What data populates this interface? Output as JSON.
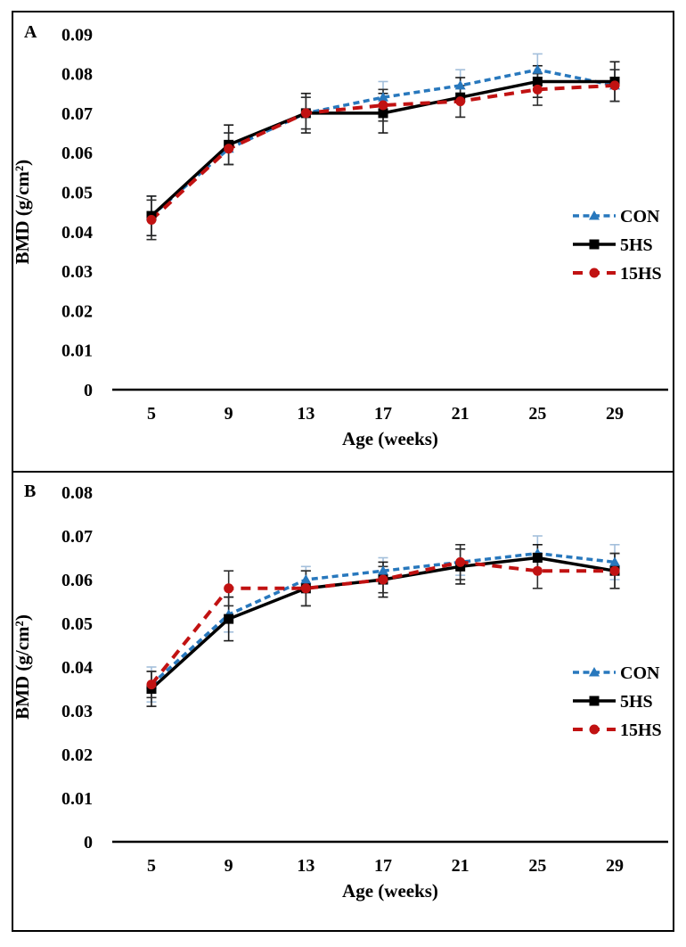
{
  "figure_title": "",
  "accent_colors": {
    "con_blue": "#2878bd",
    "hs5_black": "#000000",
    "hs15_red": "#c11212",
    "con_error": "#a3bfdb",
    "dark_error": "#1a1a1a"
  },
  "chart_data": [
    {
      "type": "line",
      "panel_label": "A",
      "xlabel": "Age (weeks)",
      "ylabel": "BMD (g/cm²)",
      "x": [
        5,
        9,
        13,
        17,
        21,
        25,
        29
      ],
      "ylim": [
        0,
        0.09
      ],
      "ytick_labels": [
        "0",
        "0.01",
        "0.02",
        "0.03",
        "0.04",
        "0.05",
        "0.06",
        "0.07",
        "0.08",
        "0.09"
      ],
      "grid": false,
      "legend_position": "right-middle",
      "error_bars": true,
      "series": [
        {
          "name": "CON",
          "color": "#2878bd",
          "line": "dashed-short",
          "marker": "triangle",
          "error_color": "#a3bfdb",
          "values": [
            0.044,
            0.061,
            0.07,
            0.074,
            0.077,
            0.081,
            0.077
          ],
          "errors": [
            0.005,
            0.004,
            0.004,
            0.004,
            0.004,
            0.004,
            0.004
          ]
        },
        {
          "name": "5HS",
          "color": "#000000",
          "line": "solid",
          "marker": "square",
          "error_color": "#1a1a1a",
          "values": [
            0.044,
            0.062,
            0.07,
            0.07,
            0.074,
            0.078,
            0.078
          ],
          "errors": [
            0.005,
            0.005,
            0.005,
            0.005,
            0.005,
            0.004,
            0.005
          ]
        },
        {
          "name": "15HS",
          "color": "#c11212",
          "line": "dashed-long",
          "marker": "circle",
          "error_color": "#2e2e2e",
          "values": [
            0.043,
            0.061,
            0.07,
            0.072,
            0.073,
            0.076,
            0.077
          ],
          "errors": [
            0.005,
            0.004,
            0.004,
            0.004,
            0.004,
            0.004,
            0.004
          ]
        }
      ]
    },
    {
      "type": "line",
      "panel_label": "B",
      "xlabel": "Age (weeks)",
      "ylabel": "BMD (g/cm²)",
      "x": [
        5,
        9,
        13,
        17,
        21,
        25,
        29
      ],
      "ylim": [
        0,
        0.08
      ],
      "ytick_labels": [
        "0",
        "0.01",
        "0.02",
        "0.03",
        "0.04",
        "0.05",
        "0.06",
        "0.07",
        "0.08"
      ],
      "grid": false,
      "legend_position": "right-middle",
      "error_bars": true,
      "series": [
        {
          "name": "CON",
          "color": "#2878bd",
          "line": "dashed-short",
          "marker": "triangle",
          "error_color": "#a3bfdb",
          "values": [
            0.036,
            0.052,
            0.06,
            0.062,
            0.064,
            0.066,
            0.064
          ],
          "errors": [
            0.004,
            0.004,
            0.003,
            0.003,
            0.003,
            0.004,
            0.004
          ]
        },
        {
          "name": "5HS",
          "color": "#000000",
          "line": "solid",
          "marker": "square",
          "error_color": "#1a1a1a",
          "values": [
            0.035,
            0.051,
            0.058,
            0.06,
            0.063,
            0.065,
            0.062
          ],
          "errors": [
            0.004,
            0.005,
            0.004,
            0.004,
            0.004,
            0.003,
            0.004
          ]
        },
        {
          "name": "15HS",
          "color": "#c11212",
          "line": "dashed-long",
          "marker": "circle",
          "error_color": "#2e2e2e",
          "values": [
            0.036,
            0.058,
            0.058,
            0.06,
            0.064,
            0.062,
            0.062
          ],
          "errors": [
            0.003,
            0.004,
            0.004,
            0.003,
            0.004,
            0.004,
            0.004
          ]
        }
      ]
    }
  ]
}
